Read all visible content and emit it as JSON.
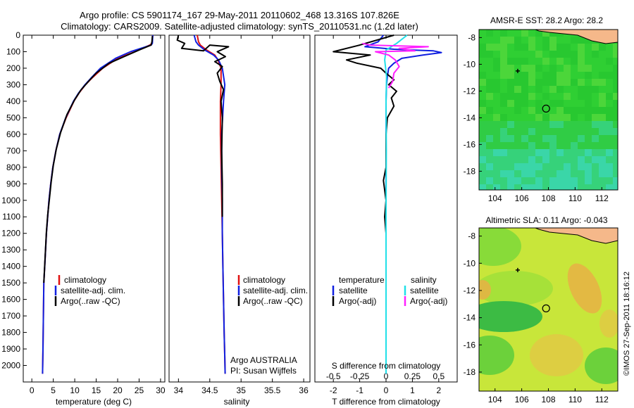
{
  "title_line1": "Argo profile: CS 5901174_167 29-May-2011 20110602_468 13.316S 107.826E",
  "title_line2": "Climatology: CARS2009. Satellite-adjusted climatology: synTS_20110531.nc (1.2d later)",
  "credit": "©IMOS 27-Sep-2011 18:16:12",
  "colors": {
    "climatology": "#e01010",
    "satellite": "#1020e0",
    "argo": "#000000",
    "sat_salinity": "#20e0e8",
    "argo_salinity": "#ff20ff",
    "land": "#f5b88a"
  },
  "chart_data": [
    {
      "type": "line",
      "name": "temperature-panel",
      "xlabel": "temperature (deg C)",
      "ylabel": "",
      "xlim": [
        -2,
        31
      ],
      "ylim": [
        2100,
        0
      ],
      "xticks": [
        0,
        5,
        10,
        15,
        20,
        25,
        30
      ],
      "yticks": [
        0,
        100,
        200,
        300,
        400,
        500,
        600,
        700,
        800,
        900,
        1000,
        1100,
        1200,
        1300,
        1400,
        1500,
        1600,
        1700,
        1800,
        1900,
        2000
      ],
      "legend": [
        "climatology",
        "satellite-adj. clim.",
        "Argo(..raw -QC)"
      ],
      "series": [
        {
          "name": "climatology",
          "color": "#e01010",
          "x": [
            28.2,
            28.0,
            27.5,
            24.0,
            20.0,
            16.5,
            14.0,
            12.5,
            11.0,
            9.8,
            8.0,
            6.5,
            5.6,
            4.9,
            4.4,
            4.0,
            3.7,
            3.4,
            3.2,
            3.0,
            2.8,
            2.7,
            2.6,
            2.5
          ],
          "y": [
            0,
            50,
            60,
            100,
            140,
            200,
            260,
            300,
            350,
            400,
            500,
            600,
            700,
            800,
            900,
            1000,
            1100,
            1200,
            1300,
            1400,
            1500,
            1700,
            1900,
            2050
          ]
        },
        {
          "name": "satellite-adj. clim.",
          "color": "#1020e0",
          "x": [
            28.2,
            28.1,
            27.8,
            23.0,
            19.5,
            16.0,
            13.8,
            12.4,
            10.9,
            9.7,
            7.9,
            6.5,
            5.6,
            4.9,
            4.4,
            4.0,
            3.7,
            3.4,
            3.2,
            3.0,
            2.8,
            2.7,
            2.6,
            2.5
          ],
          "y": [
            0,
            50,
            60,
            100,
            140,
            200,
            260,
            300,
            350,
            400,
            500,
            600,
            700,
            800,
            900,
            1000,
            1100,
            1200,
            1300,
            1400,
            1500,
            1700,
            1900,
            2050
          ]
        },
        {
          "name": "Argo(..raw -QC)",
          "color": "#000000",
          "x": [
            28.1,
            28.0,
            27.8,
            25.0,
            21.5,
            18.0,
            15.0,
            13.2,
            11.5,
            10.0,
            8.2,
            6.7,
            5.7,
            5.0,
            4.5,
            4.1,
            3.7,
            3.4,
            3.2,
            3.0,
            2.8
          ],
          "y": [
            5,
            40,
            60,
            90,
            130,
            170,
            230,
            280,
            330,
            390,
            480,
            590,
            690,
            790,
            890,
            990,
            1090,
            1190,
            1290,
            1390,
            1500
          ]
        }
      ]
    },
    {
      "type": "line",
      "name": "salinity-panel",
      "xlabel": "salinity",
      "xlim": [
        33.85,
        36.1
      ],
      "ylim": [
        2100,
        0
      ],
      "xticks": [
        34,
        34.5,
        35,
        35.5,
        36
      ],
      "legend": [
        "climatology",
        "satellite-adj. clim.",
        "Argo(..raw -QC)"
      ],
      "annotation": [
        "Argo AUSTRALIA",
        "PI: Susan Wijffels"
      ],
      "series": [
        {
          "name": "climatology",
          "color": "#e01010",
          "x": [
            34.3,
            34.32,
            34.35,
            34.45,
            34.58,
            34.63,
            34.68,
            34.68,
            34.67,
            34.67,
            34.68,
            34.69,
            34.7,
            34.71,
            34.72,
            34.73,
            34.74,
            34.745
          ],
          "y": [
            0,
            40,
            60,
            90,
            120,
            150,
            200,
            300,
            400,
            600,
            800,
            1000,
            1200,
            1400,
            1600,
            1800,
            1950,
            2050
          ]
        },
        {
          "name": "satellite-adj. clim.",
          "color": "#1020e0",
          "x": [
            34.25,
            34.28,
            34.32,
            34.42,
            34.56,
            34.64,
            34.7,
            34.74,
            34.72,
            34.69,
            34.69,
            34.7,
            34.7,
            34.71,
            34.72,
            34.73,
            34.74,
            34.745
          ],
          "y": [
            0,
            40,
            60,
            90,
            120,
            150,
            200,
            300,
            400,
            600,
            800,
            1000,
            1200,
            1400,
            1600,
            1800,
            1950,
            2050
          ]
        },
        {
          "name": "Argo(..raw -QC)",
          "color": "#000000",
          "x": [
            34.0,
            33.98,
            34.1,
            34.05,
            34.4,
            34.5,
            34.8,
            34.62,
            34.75,
            34.58,
            34.7,
            34.62,
            34.66,
            34.72,
            34.68,
            34.7,
            34.69,
            34.7,
            34.7
          ],
          "y": [
            0,
            30,
            50,
            80,
            95,
            60,
            70,
            100,
            130,
            160,
            190,
            230,
            280,
            330,
            400,
            500,
            700,
            900,
            1100
          ]
        }
      ]
    },
    {
      "type": "line",
      "name": "difference-panel",
      "xlabel": "T difference from climatology",
      "xlabel_top": "S difference from climatology",
      "xlim": [
        -2.7,
        2.7
      ],
      "ylim": [
        2100,
        0
      ],
      "xticks": [
        -2,
        -1,
        0,
        1,
        2
      ],
      "sticks": [
        -0.5,
        -0.25,
        0,
        0.25,
        0.5
      ],
      "legend": {
        "temperature_header": "temperature",
        "salinity_header": "salinity",
        "t_satellite": "satellite",
        "t_argo": "Argo(-adj)",
        "s_satellite": "satellite",
        "s_argo": "Argo(-adj)"
      },
      "series": [
        {
          "name": "T satellite",
          "color": "#1020e0",
          "x": [
            -0.1,
            -0.3,
            -0.8,
            0.3,
            1.0,
            1.8,
            2.1,
            1.4,
            0.6,
            0.3,
            0.1,
            0.05,
            0.02,
            0,
            0,
            0,
            0,
            0
          ],
          "y": [
            0,
            40,
            70,
            85,
            90,
            95,
            105,
            120,
            140,
            170,
            200,
            250,
            300,
            400,
            700,
            1100,
            1600,
            2050
          ]
        },
        {
          "name": "T Argo(-adj)",
          "color": "#000000",
          "x": [
            0.3,
            -1.0,
            -2.0,
            -0.6,
            -1.5,
            -1.1,
            -0.2,
            0.0,
            0.3,
            0.1,
            0.4,
            0.2,
            0.3,
            0.05,
            0.0,
            0.0,
            -0.1,
            0.0,
            -0.05,
            0.0,
            0.0
          ],
          "y": [
            0,
            60,
            100,
            120,
            150,
            170,
            200,
            230,
            270,
            300,
            340,
            380,
            430,
            500,
            600,
            800,
            880,
            1000,
            1100,
            1200,
            1500
          ]
        },
        {
          "name": "S satellite",
          "color": "#20e0e8",
          "x": [
            0.8,
            0.4,
            0.0,
            -0.05,
            0.02,
            0.0,
            0.01,
            0.0,
            0.0,
            0.0
          ],
          "y": [
            0,
            50,
            90,
            150,
            250,
            400,
            700,
            1100,
            1600,
            2050
          ]
        },
        {
          "name": "S Argo(-adj)",
          "color": "#ff20ff",
          "x": [
            -0.9,
            -0.6,
            1.6,
            0.5,
            1.1,
            -0.4,
            0.1,
            0.35,
            0.5,
            0.3,
            0.25,
            0.1
          ],
          "y": [
            50,
            60,
            70,
            80,
            95,
            100,
            120,
            150,
            190,
            230,
            280,
            320
          ]
        }
      ]
    },
    {
      "type": "heatmap",
      "name": "sst-map",
      "title": "AMSR-E SST: 28.2  Argo: 28.2",
      "xlim": [
        102.8,
        113.2
      ],
      "ylim": [
        -19.4,
        -7.4
      ],
      "xticks": [
        104,
        106,
        108,
        110,
        112
      ],
      "yticks": [
        -8,
        -10,
        -12,
        -14,
        -16,
        -18
      ],
      "float_marker": {
        "lon": 107.826,
        "lat": -13.316
      },
      "track_marker": {
        "lon": 105.7,
        "lat": -10.5
      }
    },
    {
      "type": "heatmap",
      "name": "sla-map",
      "title": "Altimetric SLA: 0.11  Argo: -0.043",
      "xlim": [
        102.8,
        113.2
      ],
      "ylim": [
        -19.4,
        -7.4
      ],
      "xticks": [
        104,
        106,
        108,
        110,
        112
      ],
      "yticks": [
        -8,
        -10,
        -12,
        -14,
        -16,
        -18
      ],
      "float_marker": {
        "lon": 107.826,
        "lat": -13.316
      },
      "track_marker": {
        "lon": 105.7,
        "lat": -10.5
      }
    }
  ]
}
